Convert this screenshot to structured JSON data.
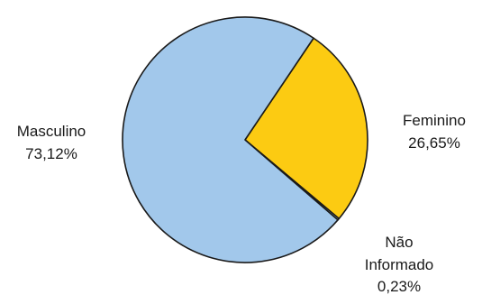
{
  "chart_data": {
    "type": "pie",
    "title": "",
    "slices": [
      {
        "label": "Feminino",
        "value_text": "26,65%",
        "value": 26.65,
        "color": "#FCCB12"
      },
      {
        "label": "Não Informado",
        "value_text": "0,23%",
        "value": 0.23,
        "color": "#A2C8EB"
      },
      {
        "label": "Masculino",
        "value_text": "73,12%",
        "value": 73.12,
        "color": "#A2C8EB"
      }
    ],
    "labels": {
      "feminino": {
        "line1": "Feminino",
        "line2": "26,65%"
      },
      "nao_informado": {
        "line1": "Não",
        "line2": "Informado",
        "line3": "0,23%"
      },
      "masculino": {
        "line1": "Masculino",
        "line2": "73,12%"
      }
    },
    "legend": "none",
    "grid": false
  }
}
